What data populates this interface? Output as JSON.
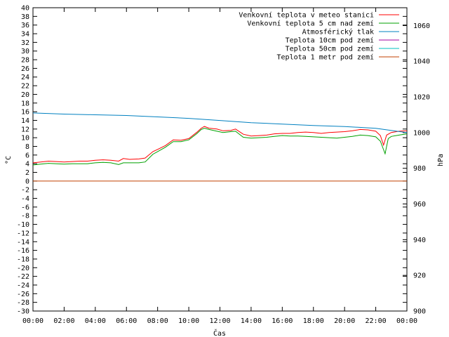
{
  "chart_data": {
    "type": "line",
    "xlabel": "Čas",
    "ylabel": "°C",
    "y2label": "hPa",
    "x_ticks": [
      "00:00",
      "02:00",
      "04:00",
      "06:00",
      "08:00",
      "10:00",
      "12:00",
      "14:00",
      "16:00",
      "18:00",
      "20:00",
      "22:00",
      "00:00"
    ],
    "x_range_hours": [
      0,
      24
    ],
    "ylim": [
      -30,
      40
    ],
    "y_step": 2,
    "y2lim": [
      900,
      1070
    ],
    "y2_ticks": [
      900,
      920,
      940,
      960,
      980,
      1000,
      1020,
      1040,
      1060
    ],
    "grid": false,
    "legend_position": "top-right",
    "series": [
      {
        "name": "Venkovní teplota v meteo stanici",
        "color": "#ff0000",
        "axis": "left",
        "x": [
          0,
          0.5,
          1,
          1.5,
          2,
          2.5,
          3,
          3.5,
          4,
          4.5,
          5,
          5.5,
          5.8,
          6.2,
          6.8,
          7.2,
          7.7,
          8,
          8.5,
          9,
          9.5,
          10,
          10.5,
          10.8,
          11,
          11.3,
          11.8,
          12.2,
          12.7,
          13,
          13.5,
          14,
          14.5,
          15,
          15.5,
          16,
          16.5,
          17,
          17.5,
          18,
          18.5,
          19,
          19.5,
          20,
          20.5,
          21,
          21.5,
          22,
          22.3,
          22.5,
          22.7,
          23,
          23.5,
          24
        ],
        "y": [
          4.2,
          4.4,
          4.6,
          4.5,
          4.4,
          4.5,
          4.6,
          4.6,
          4.8,
          4.9,
          4.8,
          4.6,
          5.2,
          5.0,
          5.1,
          5.3,
          6.8,
          7.3,
          8.2,
          9.5,
          9.4,
          9.8,
          11.2,
          12.2,
          12.6,
          12.2,
          12.0,
          11.6,
          11.7,
          12.0,
          10.8,
          10.4,
          10.5,
          10.6,
          10.9,
          11.0,
          11.0,
          11.2,
          11.3,
          11.2,
          11.0,
          11.2,
          11.3,
          11.4,
          11.6,
          11.9,
          11.8,
          11.5,
          10.5,
          8.3,
          10.6,
          11.2,
          11.5,
          11.6
        ]
      },
      {
        "name": "Venkovní teplota 5 cm nad zemí",
        "color": "#00a000",
        "axis": "left",
        "x": [
          0,
          0.5,
          1,
          1.5,
          2,
          2.5,
          3,
          3.5,
          4,
          4.5,
          5,
          5.5,
          5.8,
          6.2,
          6.8,
          7.2,
          7.7,
          8,
          8.5,
          9,
          9.5,
          10,
          10.5,
          10.8,
          11,
          11.3,
          11.8,
          12.2,
          12.7,
          13,
          13.5,
          14,
          14.5,
          15,
          15.5,
          16,
          16.5,
          17,
          17.5,
          18,
          18.5,
          19,
          19.5,
          20,
          20.5,
          21,
          21.5,
          22,
          22.3,
          22.6,
          22.8,
          23,
          23.5,
          24
        ],
        "y": [
          3.7,
          3.9,
          4.1,
          4.0,
          3.9,
          4.0,
          4.0,
          4.0,
          4.2,
          4.3,
          4.2,
          3.8,
          4.2,
          4.2,
          4.2,
          4.4,
          6.2,
          6.8,
          7.8,
          9.1,
          9.1,
          9.5,
          10.9,
          11.9,
          12.2,
          11.9,
          11.5,
          11.2,
          11.4,
          11.5,
          10.1,
          9.9,
          10.0,
          10.1,
          10.3,
          10.5,
          10.4,
          10.4,
          10.3,
          10.2,
          10.1,
          10.0,
          9.9,
          10.1,
          10.3,
          10.6,
          10.5,
          10.2,
          9.2,
          6.3,
          9.8,
          10.3,
          10.6,
          10.9
        ]
      },
      {
        "name": "Atmosférický tlak",
        "color": "#0080c0",
        "axis": "right",
        "x": [
          0,
          2,
          4,
          6,
          8,
          10,
          12,
          14,
          16,
          18,
          20,
          22,
          24
        ],
        "y": [
          1011.0,
          1010.4,
          1010.0,
          1009.6,
          1008.8,
          1008.0,
          1006.8,
          1005.6,
          1004.8,
          1004.0,
          1003.4,
          1002.4,
          1000.0
        ]
      },
      {
        "name": "Teplota 10cm pod zemí",
        "color": "#a000a0",
        "axis": "left",
        "x": [],
        "y": []
      },
      {
        "name": "Teplota 50cm pod zemí",
        "color": "#00c0c0",
        "axis": "left",
        "x": [],
        "y": []
      },
      {
        "name": "Teplota 1 metr pod zemí",
        "color": "#c04000",
        "axis": "left",
        "x": [
          0,
          24
        ],
        "y": [
          0,
          0
        ]
      }
    ]
  }
}
